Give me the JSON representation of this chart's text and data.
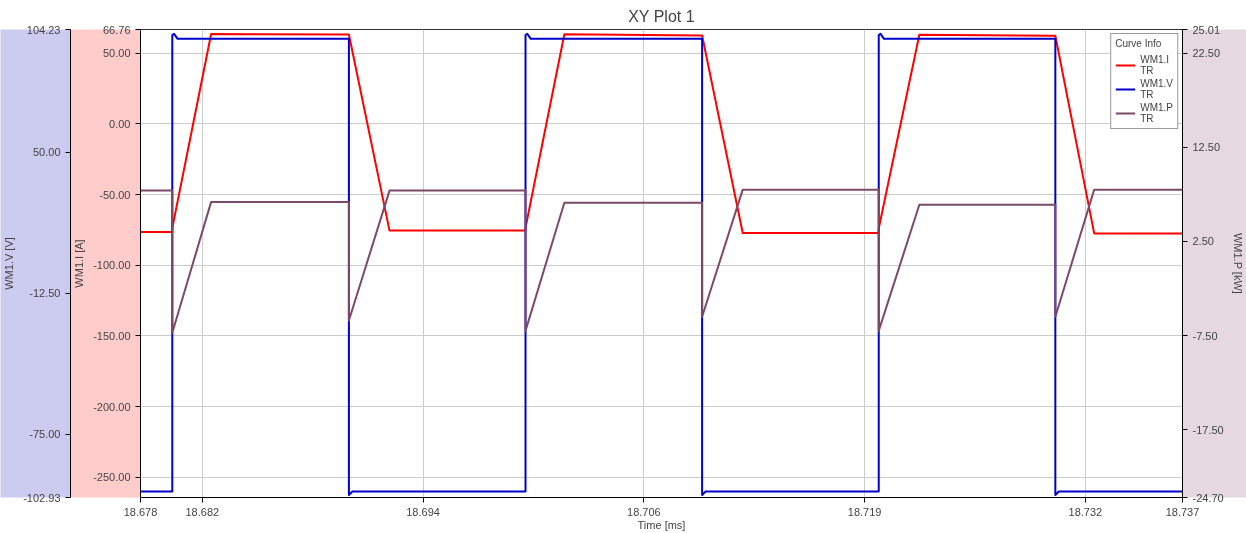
{
  "chart_data": {
    "type": "line",
    "title": "XY Plot 1",
    "xlabel": "Time [ms]",
    "ylabel": "WM1.I [A]",
    "y2label": "WM1.P [kW]",
    "y3label": "WM1.V [V]",
    "legend_title": "Curve Info",
    "legend": "top right",
    "grid": true,
    "line_style": "solid",
    "marker": "none",
    "xlim": [
      18.678,
      18.737
    ],
    "xticks": [
      {
        "value": 18.678,
        "label": "18.678"
      },
      {
        "value": 18.6815,
        "label": "18.682"
      },
      {
        "value": 18.694,
        "label": "18.694"
      },
      {
        "value": 18.7065,
        "label": "18.706"
      },
      {
        "value": 18.719,
        "label": "18.719"
      },
      {
        "value": 18.7315,
        "label": "18.732"
      },
      {
        "value": 18.737,
        "label": "18.737"
      }
    ],
    "ylim": [
      -264.3,
      66.76
    ],
    "yticks": [
      {
        "value": 66.76,
        "label": "66.76"
      },
      {
        "value": 50,
        "label": "50.00"
      },
      {
        "value": 0,
        "label": "0.00"
      },
      {
        "value": -50,
        "label": "-50.00"
      },
      {
        "value": -100,
        "label": "-100.00"
      },
      {
        "value": -150,
        "label": "-150.00"
      },
      {
        "value": -200,
        "label": "-200.00"
      },
      {
        "value": -250,
        "label": "-250.00"
      }
    ],
    "y2lim": [
      -24.7,
      25.01
    ],
    "y2ticks": [
      {
        "value": 25.01,
        "label": "25.01"
      },
      {
        "value": 22.5,
        "label": "22.50"
      },
      {
        "value": 12.5,
        "label": "12.50"
      },
      {
        "value": 2.5,
        "label": "2.50"
      },
      {
        "value": -7.5,
        "label": "-7.50"
      },
      {
        "value": -17.5,
        "label": "-17.50"
      },
      {
        "value": -24.7,
        "label": "-24.70"
      }
    ],
    "y3lim": [
      -102.93,
      104.23
    ],
    "y3ticks": [
      {
        "value": 104.23,
        "label": "104.23"
      },
      {
        "value": 50,
        "label": "50.00"
      },
      {
        "value": -12.5,
        "label": "-12.50"
      },
      {
        "value": -75,
        "label": "-75.00"
      },
      {
        "value": -102.93,
        "label": "-102.93"
      }
    ],
    "series": [
      {
        "name": "WM1.I\nTR",
        "color": "#ff0000",
        "x": [
          18.678,
          18.6798,
          18.6798,
          18.682,
          18.6898,
          18.6921,
          18.6998,
          18.6998,
          18.702,
          18.7098,
          18.7121,
          18.7198,
          18.7198,
          18.7221,
          18.7298,
          18.732,
          18.737
        ],
        "values": [
          -76.5,
          -76.5,
          -73.7,
          63.6,
          63.2,
          -75.5,
          -75.5,
          -73.5,
          63.4,
          62.5,
          -77.2,
          -77.2,
          -74,
          63,
          62.3,
          -77.5,
          -77.5
        ]
      },
      {
        "name": "WM1.V\nTR",
        "color": "#0000cc",
        "axis": "y3",
        "x": [
          18.678,
          18.6798,
          18.6798,
          18.6799,
          18.6801,
          18.6898,
          18.6898,
          18.69,
          18.6998,
          18.6998,
          18.6999,
          18.7001,
          18.7098,
          18.7098,
          18.71,
          18.7198,
          18.7198,
          18.7199,
          18.7201,
          18.7298,
          18.7298,
          18.73,
          18.737
        ],
        "values": [
          -100.3,
          -100.3,
          101.8,
          102.3,
          100.1,
          100.1,
          -101.8,
          -100.3,
          -100.3,
          101.8,
          102.3,
          100.1,
          100.1,
          -101.8,
          -100.3,
          -100.3,
          101.8,
          102.3,
          100.1,
          100.1,
          -101.8,
          -100.3,
          -100.3
        ]
      },
      {
        "name": "WM1.P\nTR",
        "color": "#7b4a6b",
        "axis": "y2",
        "x": [
          18.678,
          18.6798,
          18.6798,
          18.682,
          18.6898,
          18.6898,
          18.6921,
          18.6998,
          18.6998,
          18.702,
          18.7098,
          18.7098,
          18.7121,
          18.7198,
          18.7198,
          18.7221,
          18.7298,
          18.7298,
          18.732,
          18.737
        ],
        "values": [
          7.9,
          7.9,
          -7.2,
          6.7,
          6.7,
          -5.9,
          7.9,
          7.9,
          -7.0,
          6.6,
          6.6,
          -5.5,
          8.0,
          8.0,
          -7.0,
          6.4,
          6.4,
          -5.5,
          8.0,
          8.0
        ]
      }
    ]
  }
}
